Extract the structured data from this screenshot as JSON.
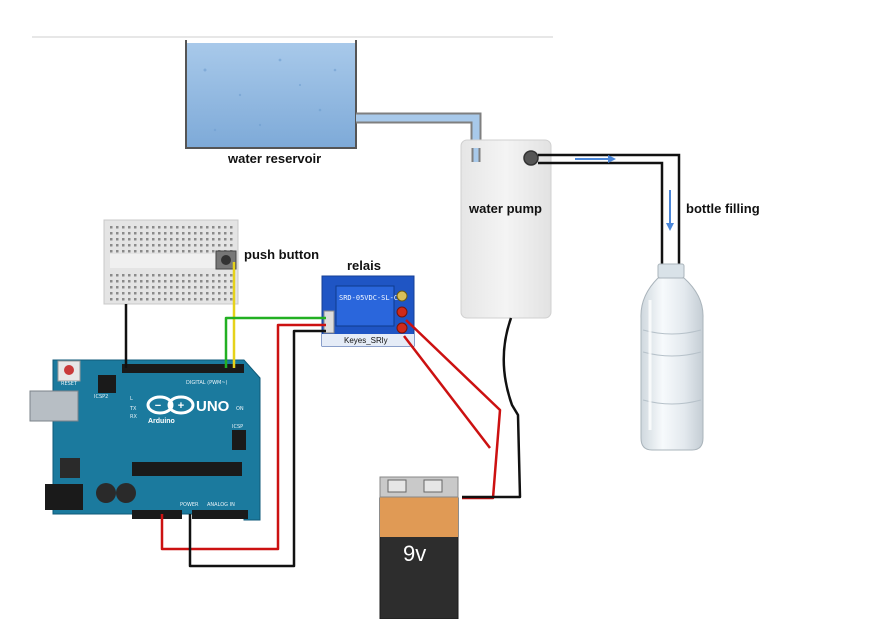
{
  "labels": {
    "water_reservoir": "water reservoir",
    "water_pump": "water pump",
    "bottle_filling": "bottle filling",
    "push_button": "push button",
    "relais": "relais"
  },
  "arduino": {
    "brand": "UNO",
    "sub": "Arduino",
    "reset": "RESET",
    "icsp2": "ICSP2",
    "icsp": "ICSP",
    "digital": "DIGITAL (PWM~)",
    "analog": "ANALOG IN",
    "power": "POWER",
    "tx": "TX",
    "rx": "RX",
    "l": "L",
    "on": "ON"
  },
  "relay": {
    "model_text": "SRD-05VDC-SL-C",
    "brand": "Keyes_SRly"
  },
  "battery": {
    "voltage": "9v"
  },
  "colors": {
    "water": "#8fb7e0",
    "board": "#1b7a9e",
    "relay_board": "#1f55c4",
    "wire_red": "#cc1111",
    "wire_black": "#111111",
    "wire_green": "#22b022",
    "wire_yellow": "#e6d21a",
    "flow_arrow": "#4a86d9",
    "battery_orange": "#e09a55",
    "battery_body": "#2d2d2d"
  },
  "icons": {
    "flow_arrow_horizontal": "arrow-right-icon",
    "flow_arrow_vertical": "arrow-down-icon"
  }
}
